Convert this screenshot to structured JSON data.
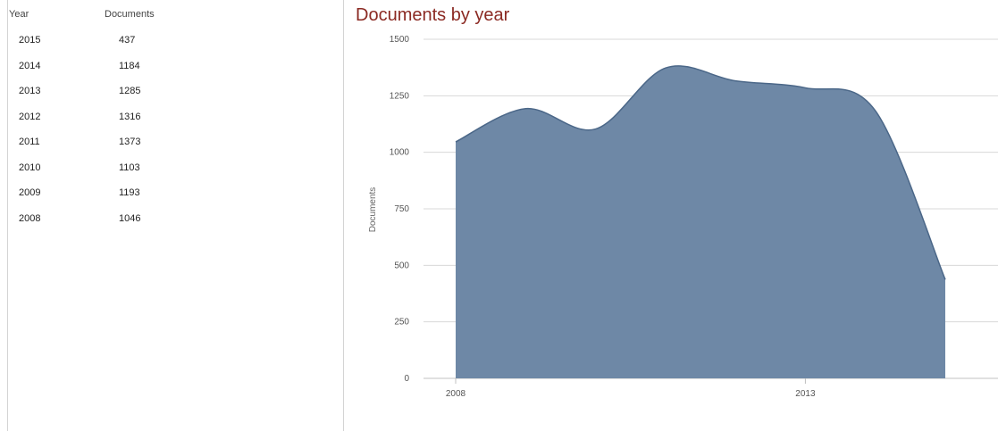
{
  "table": {
    "headers": {
      "year": "Year",
      "documents": "Documents"
    },
    "rows": [
      {
        "year": "2015",
        "documents": "437"
      },
      {
        "year": "2014",
        "documents": "1184"
      },
      {
        "year": "2013",
        "documents": "1285"
      },
      {
        "year": "2012",
        "documents": "1316"
      },
      {
        "year": "2011",
        "documents": "1373"
      },
      {
        "year": "2010",
        "documents": "1103"
      },
      {
        "year": "2009",
        "documents": "1193"
      },
      {
        "year": "2008",
        "documents": "1046"
      }
    ]
  },
  "chart_data": {
    "type": "area",
    "title": "Documents by year",
    "xlabel": "",
    "ylabel": "Documents",
    "x": [
      2008,
      2009,
      2010,
      2011,
      2012,
      2013,
      2014,
      2015
    ],
    "values": [
      1046,
      1193,
      1103,
      1373,
      1316,
      1285,
      1184,
      437
    ],
    "x_tick_labels": [
      "2008",
      "2013"
    ],
    "ylim": [
      0,
      1500
    ],
    "yticks": [
      0,
      250,
      500,
      750,
      1000,
      1250,
      1500
    ],
    "grid": true,
    "legend": "none",
    "colors": {
      "fill": "#6e88a6",
      "line": "#4b6788",
      "grid": "#d8d8d8",
      "axis": "#c0c0c0"
    }
  }
}
